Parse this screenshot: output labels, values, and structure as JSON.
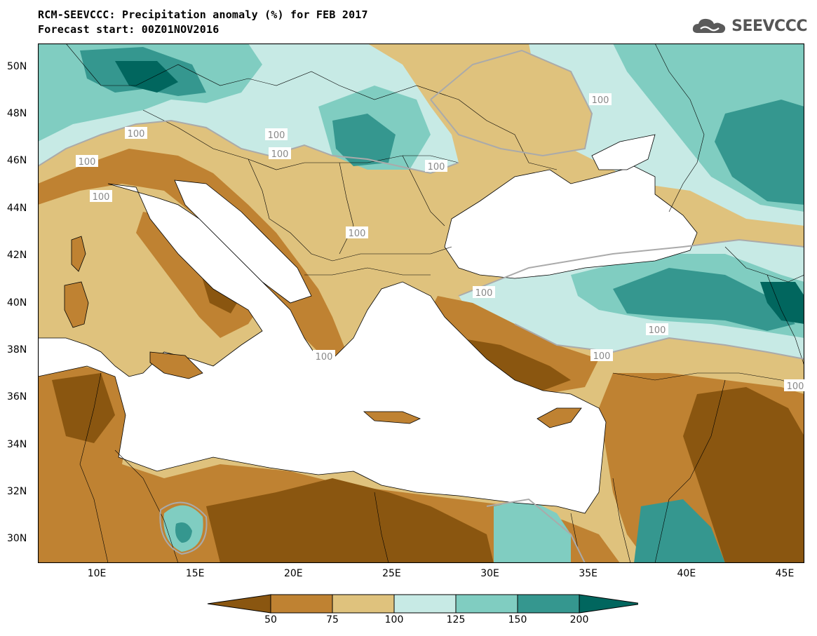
{
  "header": {
    "title": "RCM-SEEVCCC: Precipitation anomaly (%) for FEB 2017",
    "subtitle": "Forecast start: 00Z01NOV2016",
    "logo_text": "SEEVCCC",
    "logo_icon": "cloud-logo-icon"
  },
  "map": {
    "lon_range": [
      7,
      46
    ],
    "lat_range": [
      29,
      51
    ],
    "lat_labels": [
      "50N",
      "48N",
      "46N",
      "44N",
      "42N",
      "40N",
      "38N",
      "36N",
      "34N",
      "32N",
      "30N"
    ],
    "lon_labels": [
      "10E",
      "15E",
      "20E",
      "25E",
      "30E",
      "35E",
      "40E",
      "45E"
    ],
    "contour_label": "100"
  },
  "legend": {
    "colors": [
      "#8a5610",
      "#bf8232",
      "#dfc27d",
      "#c7eae5",
      "#80cdc1",
      "#35978f",
      "#01665e"
    ],
    "labels": [
      "50",
      "75",
      "100",
      "125",
      "150",
      "200"
    ]
  }
}
